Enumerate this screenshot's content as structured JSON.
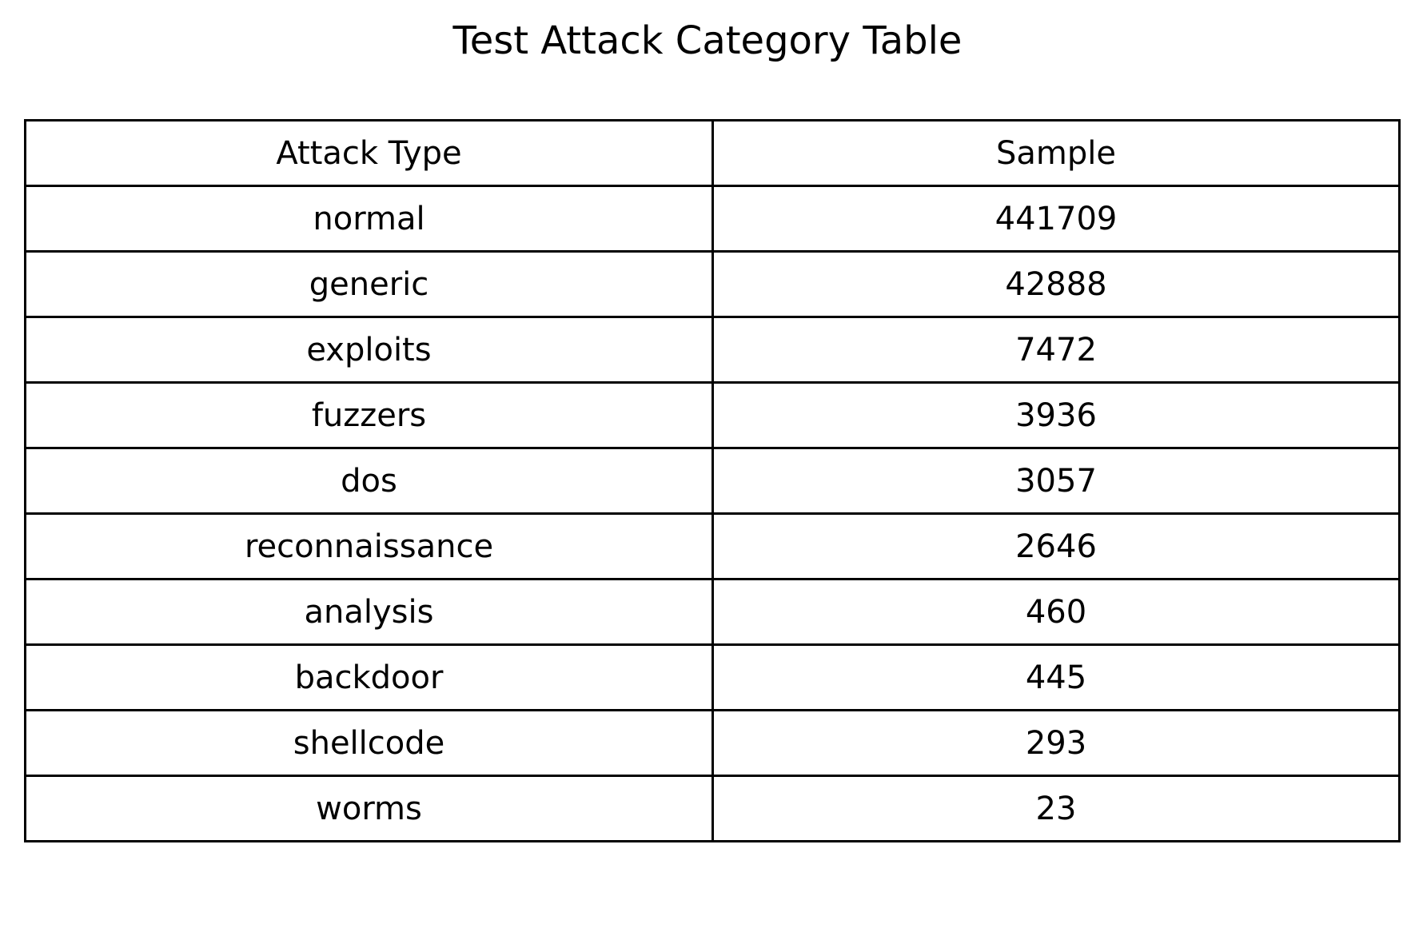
{
  "chart_data": {
    "type": "table",
    "title": "Test Attack Category Table",
    "columns": [
      "Attack Type",
      "Sample"
    ],
    "rows": [
      [
        "normal",
        441709
      ],
      [
        "generic",
        42888
      ],
      [
        "exploits",
        7472
      ],
      [
        "fuzzers",
        3936
      ],
      [
        "dos",
        3057
      ],
      [
        "reconnaissance",
        2646
      ],
      [
        "analysis",
        460
      ],
      [
        "backdoor",
        445
      ],
      [
        "shellcode",
        293
      ],
      [
        "worms",
        23
      ]
    ]
  }
}
